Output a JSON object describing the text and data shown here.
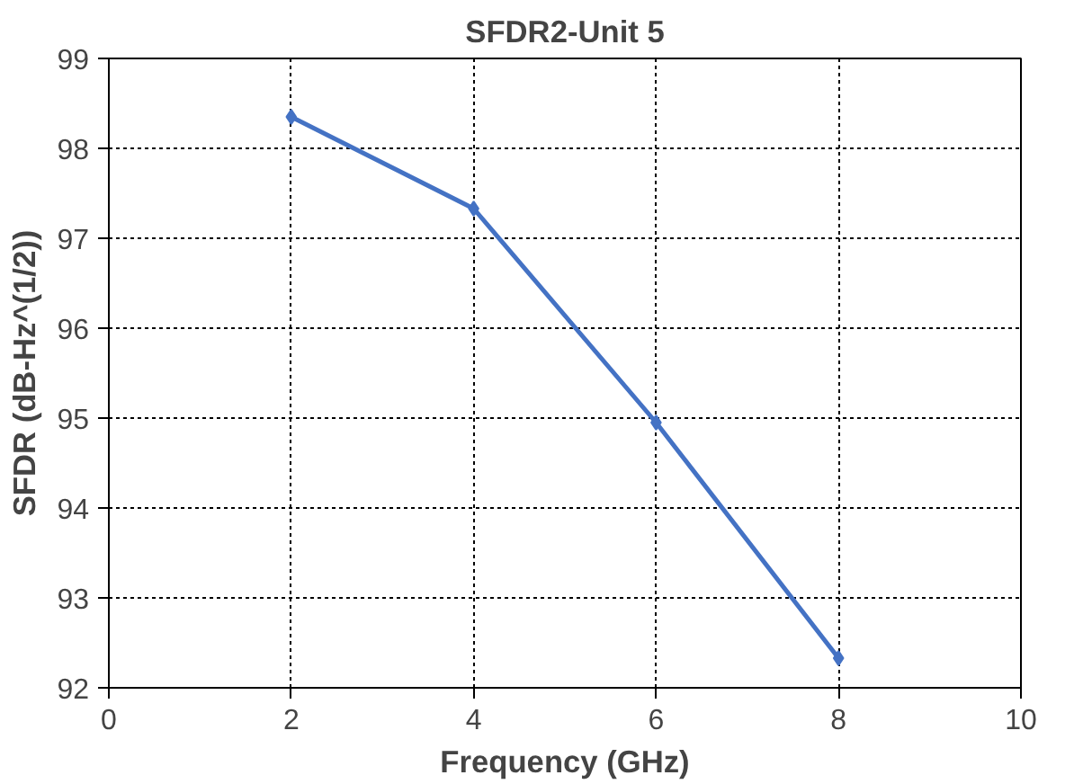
{
  "chart_data": {
    "type": "line",
    "title": "SFDR2-Unit 5",
    "xlabel": "Frequency (GHz)",
    "ylabel": "SFDR (dB-Hz^(1/2))",
    "x": [
      2,
      4,
      6,
      8
    ],
    "series": [
      {
        "color": "#4472c4",
        "values": [
          98.35,
          97.33,
          94.95,
          92.33
        ]
      }
    ],
    "xlim": [
      0,
      10
    ],
    "xticks": [
      0,
      2,
      4,
      6,
      8,
      10
    ],
    "ylim": [
      92,
      99
    ],
    "yticks": [
      92,
      93,
      94,
      95,
      96,
      97,
      98,
      99
    ],
    "grid": true,
    "marker": "diamond",
    "line_style": "solid"
  }
}
